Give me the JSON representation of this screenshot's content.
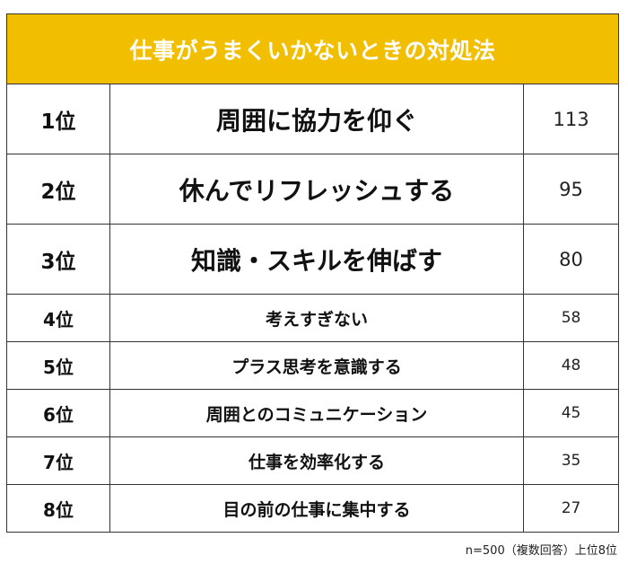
{
  "chart_data": {
    "type": "table",
    "title": "仕事がうまくいかないときの対処法",
    "rows": [
      {
        "rank": "1位",
        "item": "周囲に協力を仰ぐ",
        "value": 113
      },
      {
        "rank": "2位",
        "item": "休んでリフレッシュする",
        "value": 95
      },
      {
        "rank": "3位",
        "item": "知識・スキルを伸ばす",
        "value": 80
      },
      {
        "rank": "4位",
        "item": "考えすぎない",
        "value": 58
      },
      {
        "rank": "5位",
        "item": "プラス思考を意識する",
        "value": 48
      },
      {
        "rank": "6位",
        "item": "周囲とのコミュニケーション",
        "value": 45
      },
      {
        "rank": "7位",
        "item": "仕事を効率化する",
        "value": 35
      },
      {
        "rank": "8位",
        "item": "目の前の仕事に集中する",
        "value": 27
      }
    ],
    "footnote": "n=500（複数回答）上位8位",
    "header_color": "#F2BE00"
  }
}
